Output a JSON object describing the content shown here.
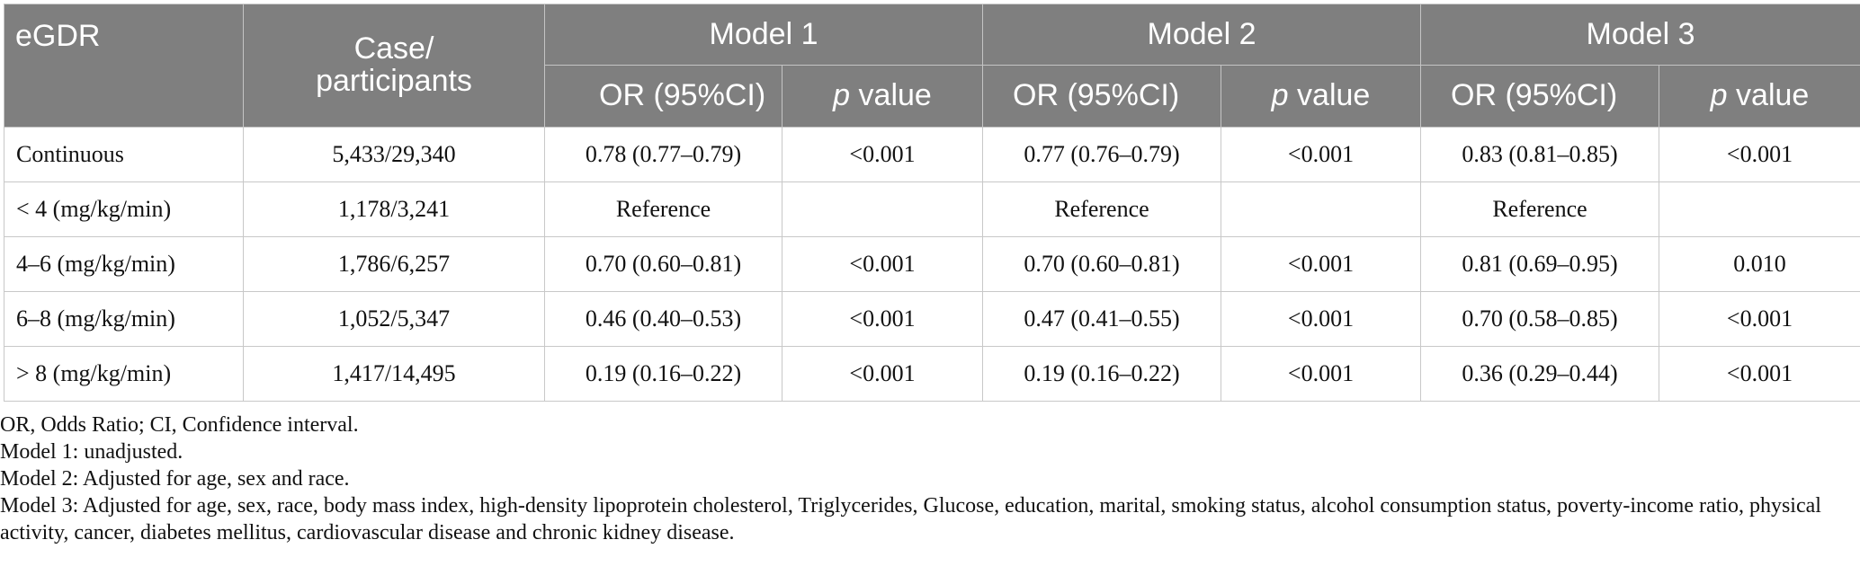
{
  "table": {
    "header": {
      "egdr": "eGDR",
      "case_participants": "Case/\nparticipants",
      "models": [
        "Model 1",
        "Model 2",
        "Model 3"
      ],
      "or_label": "OR (95%CI)",
      "p_italic": "p",
      "p_rest": " value"
    },
    "rows": [
      {
        "label": "Continuous",
        "case": "5,433/29,340",
        "m1_or": "0.78 (0.77–0.79)",
        "m1_p": "<0.001",
        "m2_or": "0.77 (0.76–0.79)",
        "m2_p": "<0.001",
        "m3_or": "0.83 (0.81–0.85)",
        "m3_p": "<0.001"
      },
      {
        "label": "< 4 (mg/kg/min)",
        "case": "1,178/3,241",
        "m1_or": "Reference",
        "m1_p": "",
        "m2_or": "Reference",
        "m2_p": "",
        "m3_or": "Reference",
        "m3_p": ""
      },
      {
        "label": "4–6 (mg/kg/min)",
        "case": "1,786/6,257",
        "m1_or": "0.70 (0.60–0.81)",
        "m1_p": "<0.001",
        "m2_or": "0.70 (0.60–0.81)",
        "m2_p": "<0.001",
        "m3_or": "0.81 (0.69–0.95)",
        "m3_p": "0.010"
      },
      {
        "label": "6–8 (mg/kg/min)",
        "case": "1,052/5,347",
        "m1_or": "0.46 (0.40–0.53)",
        "m1_p": "<0.001",
        "m2_or": "0.47 (0.41–0.55)",
        "m2_p": "<0.001",
        "m3_or": "0.70 (0.58–0.85)",
        "m3_p": "<0.001"
      },
      {
        "label": "> 8 (mg/kg/min)",
        "case": "1,417/14,495",
        "m1_or": "0.19 (0.16–0.22)",
        "m1_p": "<0.001",
        "m2_or": "0.19 (0.16–0.22)",
        "m2_p": "<0.001",
        "m3_or": "0.36 (0.29–0.44)",
        "m3_p": "<0.001"
      }
    ]
  },
  "footnotes": [
    "OR, Odds Ratio; CI, Confidence interval.",
    "Model 1: unadjusted.",
    "Model 2: Adjusted for age, sex and race.",
    "Model 3: Adjusted for age, sex, race, body mass index, high-density lipoprotein cholesterol, Triglycerides, Glucose, education, marital, smoking status, alcohol consumption status, poverty-income ratio, physical activity, cancer, diabetes mellitus, cardiovascular disease and chronic kidney disease."
  ],
  "colors": {
    "header_bg": "#7f7f7f",
    "header_text": "#ffffff",
    "grid": "#c8c8c8"
  }
}
